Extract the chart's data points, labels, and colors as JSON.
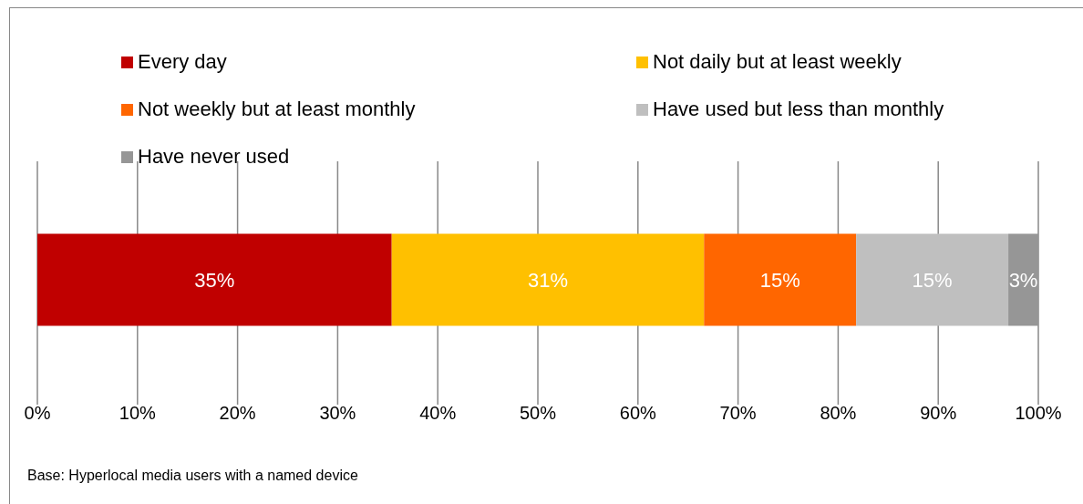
{
  "chart_data": {
    "type": "bar",
    "orientation": "horizontal",
    "stacked": true,
    "categories": [
      null
    ],
    "series": [
      {
        "name": "Every day",
        "color": "#c00000",
        "values": [
          35.4
        ],
        "value_labels": [
          "35%"
        ]
      },
      {
        "name": "Not daily but at least weekly",
        "color": "#ffc000",
        "values": [
          31.2
        ],
        "value_labels": [
          "31%"
        ]
      },
      {
        "name": "Not weekly but at least monthly",
        "color": "#ff6600",
        "values": [
          15.2
        ],
        "value_labels": [
          "15%"
        ]
      },
      {
        "name": "Have used but less than monthly",
        "color": "#bfbfbf",
        "values": [
          15.2
        ],
        "value_labels": [
          "15%"
        ]
      },
      {
        "name": "Have never used",
        "color": "#969696",
        "values": [
          3.0
        ],
        "value_labels": [
          "3%"
        ]
      }
    ],
    "xlim": [
      0,
      100
    ],
    "xticks": [
      {
        "value": 0,
        "label": "0%"
      },
      {
        "value": 10,
        "label": "10%"
      },
      {
        "value": 20,
        "label": "20%"
      },
      {
        "value": 30,
        "label": "30%"
      },
      {
        "value": 40,
        "label": "40%"
      },
      {
        "value": 50,
        "label": "50%"
      },
      {
        "value": 60,
        "label": "60%"
      },
      {
        "value": 70,
        "label": "70%"
      },
      {
        "value": 80,
        "label": "80%"
      },
      {
        "value": 90,
        "label": "90%"
      },
      {
        "value": 100,
        "label": "100%"
      }
    ],
    "grid": "x",
    "legend": "top",
    "annotations": [
      "Base: Hyperlocal media users with a named device"
    ]
  }
}
